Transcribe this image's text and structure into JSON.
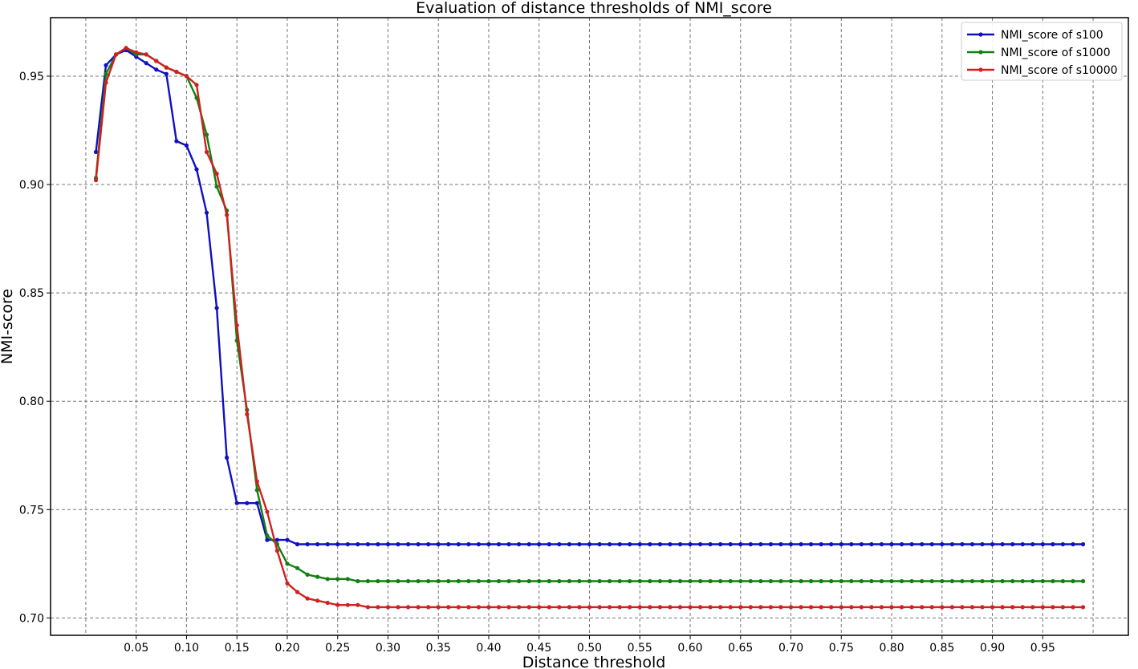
{
  "chart_data": {
    "type": "line",
    "title": "Evaluation of distance thresholds of NMI_score",
    "xlabel": "Distance threshold",
    "ylabel": "NMI-score",
    "xlim": [
      -0.035,
      1.035
    ],
    "ylim": [
      0.692,
      0.977
    ],
    "xticks": [
      "0.05",
      "0.10",
      "0.15",
      "0.20",
      "0.25",
      "0.30",
      "0.35",
      "0.40",
      "0.45",
      "0.50",
      "0.55",
      "0.60",
      "0.65",
      "0.70",
      "0.75",
      "0.80",
      "0.85",
      "0.90",
      "0.95"
    ],
    "yticks": [
      "0.70",
      "0.75",
      "0.80",
      "0.85",
      "0.90",
      "0.95"
    ],
    "grid": true,
    "legend_position": "top-right",
    "x": [
      0.01,
      0.02,
      0.03,
      0.04,
      0.05,
      0.06,
      0.07,
      0.08,
      0.09,
      0.1,
      0.11,
      0.12,
      0.13,
      0.14,
      0.15,
      0.16,
      0.17,
      0.18,
      0.19,
      0.2,
      0.21,
      0.22,
      0.23,
      0.24,
      0.25,
      0.26,
      0.27,
      0.28,
      0.29,
      0.3,
      0.31,
      0.32,
      0.33,
      0.34,
      0.35,
      0.36,
      0.37,
      0.38,
      0.39,
      0.4,
      0.41,
      0.42,
      0.43,
      0.44,
      0.45,
      0.46,
      0.47,
      0.48,
      0.49,
      0.5,
      0.51,
      0.52,
      0.53,
      0.54,
      0.55,
      0.56,
      0.57,
      0.58,
      0.59,
      0.6,
      0.61,
      0.62,
      0.63,
      0.64,
      0.65,
      0.66,
      0.67,
      0.68,
      0.69,
      0.7,
      0.71,
      0.72,
      0.73,
      0.74,
      0.75,
      0.76,
      0.77,
      0.78,
      0.79,
      0.8,
      0.81,
      0.82,
      0.83,
      0.84,
      0.85,
      0.86,
      0.87,
      0.88,
      0.89,
      0.9,
      0.91,
      0.92,
      0.93,
      0.94,
      0.95,
      0.96,
      0.97,
      0.98,
      0.99
    ],
    "series": [
      {
        "name": "NMI_score of s100",
        "color": "#1010c0",
        "values": [
          0.915,
          0.955,
          0.96,
          0.962,
          0.959,
          0.956,
          0.953,
          0.951,
          0.92,
          0.918,
          0.907,
          0.887,
          0.843,
          0.774,
          0.753,
          0.753,
          0.753,
          0.736,
          0.736,
          0.736,
          0.734,
          0.734,
          0.734,
          0.734,
          0.734,
          0.734,
          0.734,
          0.734,
          0.734,
          0.734,
          0.734,
          0.734,
          0.734,
          0.734,
          0.734,
          0.734,
          0.734,
          0.734,
          0.734,
          0.734,
          0.734,
          0.734,
          0.734,
          0.734,
          0.734,
          0.734,
          0.734,
          0.734,
          0.734,
          0.734,
          0.734,
          0.734,
          0.734,
          0.734,
          0.734,
          0.734,
          0.734,
          0.734,
          0.734,
          0.734,
          0.734,
          0.734,
          0.734,
          0.734,
          0.734,
          0.734,
          0.734,
          0.734,
          0.734,
          0.734,
          0.734,
          0.734,
          0.734,
          0.734,
          0.734,
          0.734,
          0.734,
          0.734,
          0.734,
          0.734,
          0.734,
          0.734,
          0.734,
          0.734,
          0.734,
          0.734,
          0.734,
          0.734,
          0.734,
          0.734,
          0.734,
          0.734,
          0.734,
          0.734,
          0.734,
          0.734,
          0.734,
          0.734,
          0.734
        ]
      },
      {
        "name": "NMI_score of s1000",
        "color": "#108010",
        "values": [
          0.903,
          0.951,
          0.96,
          0.963,
          0.96,
          0.96,
          0.957,
          0.954,
          0.952,
          0.95,
          0.94,
          0.923,
          0.899,
          0.888,
          0.828,
          0.796,
          0.759,
          0.738,
          0.734,
          0.725,
          0.723,
          0.72,
          0.719,
          0.718,
          0.718,
          0.718,
          0.717,
          0.717,
          0.717,
          0.717,
          0.717,
          0.717,
          0.717,
          0.717,
          0.717,
          0.717,
          0.717,
          0.717,
          0.717,
          0.717,
          0.717,
          0.717,
          0.717,
          0.717,
          0.717,
          0.717,
          0.717,
          0.717,
          0.717,
          0.717,
          0.717,
          0.717,
          0.717,
          0.717,
          0.717,
          0.717,
          0.717,
          0.717,
          0.717,
          0.717,
          0.717,
          0.717,
          0.717,
          0.717,
          0.717,
          0.717,
          0.717,
          0.717,
          0.717,
          0.717,
          0.717,
          0.717,
          0.717,
          0.717,
          0.717,
          0.717,
          0.717,
          0.717,
          0.717,
          0.717,
          0.717,
          0.717,
          0.717,
          0.717,
          0.717,
          0.717,
          0.717,
          0.717,
          0.717,
          0.717,
          0.717,
          0.717,
          0.717,
          0.717,
          0.717,
          0.717,
          0.717,
          0.717,
          0.717
        ]
      },
      {
        "name": "NMI_score of s10000",
        "color": "#d02020",
        "values": [
          0.902,
          0.947,
          0.96,
          0.963,
          0.961,
          0.96,
          0.957,
          0.954,
          0.952,
          0.95,
          0.946,
          0.915,
          0.905,
          0.886,
          0.835,
          0.794,
          0.763,
          0.749,
          0.731,
          0.716,
          0.712,
          0.709,
          0.708,
          0.707,
          0.706,
          0.706,
          0.706,
          0.705,
          0.705,
          0.705,
          0.705,
          0.705,
          0.705,
          0.705,
          0.705,
          0.705,
          0.705,
          0.705,
          0.705,
          0.705,
          0.705,
          0.705,
          0.705,
          0.705,
          0.705,
          0.705,
          0.705,
          0.705,
          0.705,
          0.705,
          0.705,
          0.705,
          0.705,
          0.705,
          0.705,
          0.705,
          0.705,
          0.705,
          0.705,
          0.705,
          0.705,
          0.705,
          0.705,
          0.705,
          0.705,
          0.705,
          0.705,
          0.705,
          0.705,
          0.705,
          0.705,
          0.705,
          0.705,
          0.705,
          0.705,
          0.705,
          0.705,
          0.705,
          0.705,
          0.705,
          0.705,
          0.705,
          0.705,
          0.705,
          0.705,
          0.705,
          0.705,
          0.705,
          0.705,
          0.705,
          0.705,
          0.705,
          0.705,
          0.705,
          0.705,
          0.705,
          0.705,
          0.705,
          0.705
        ]
      }
    ]
  }
}
